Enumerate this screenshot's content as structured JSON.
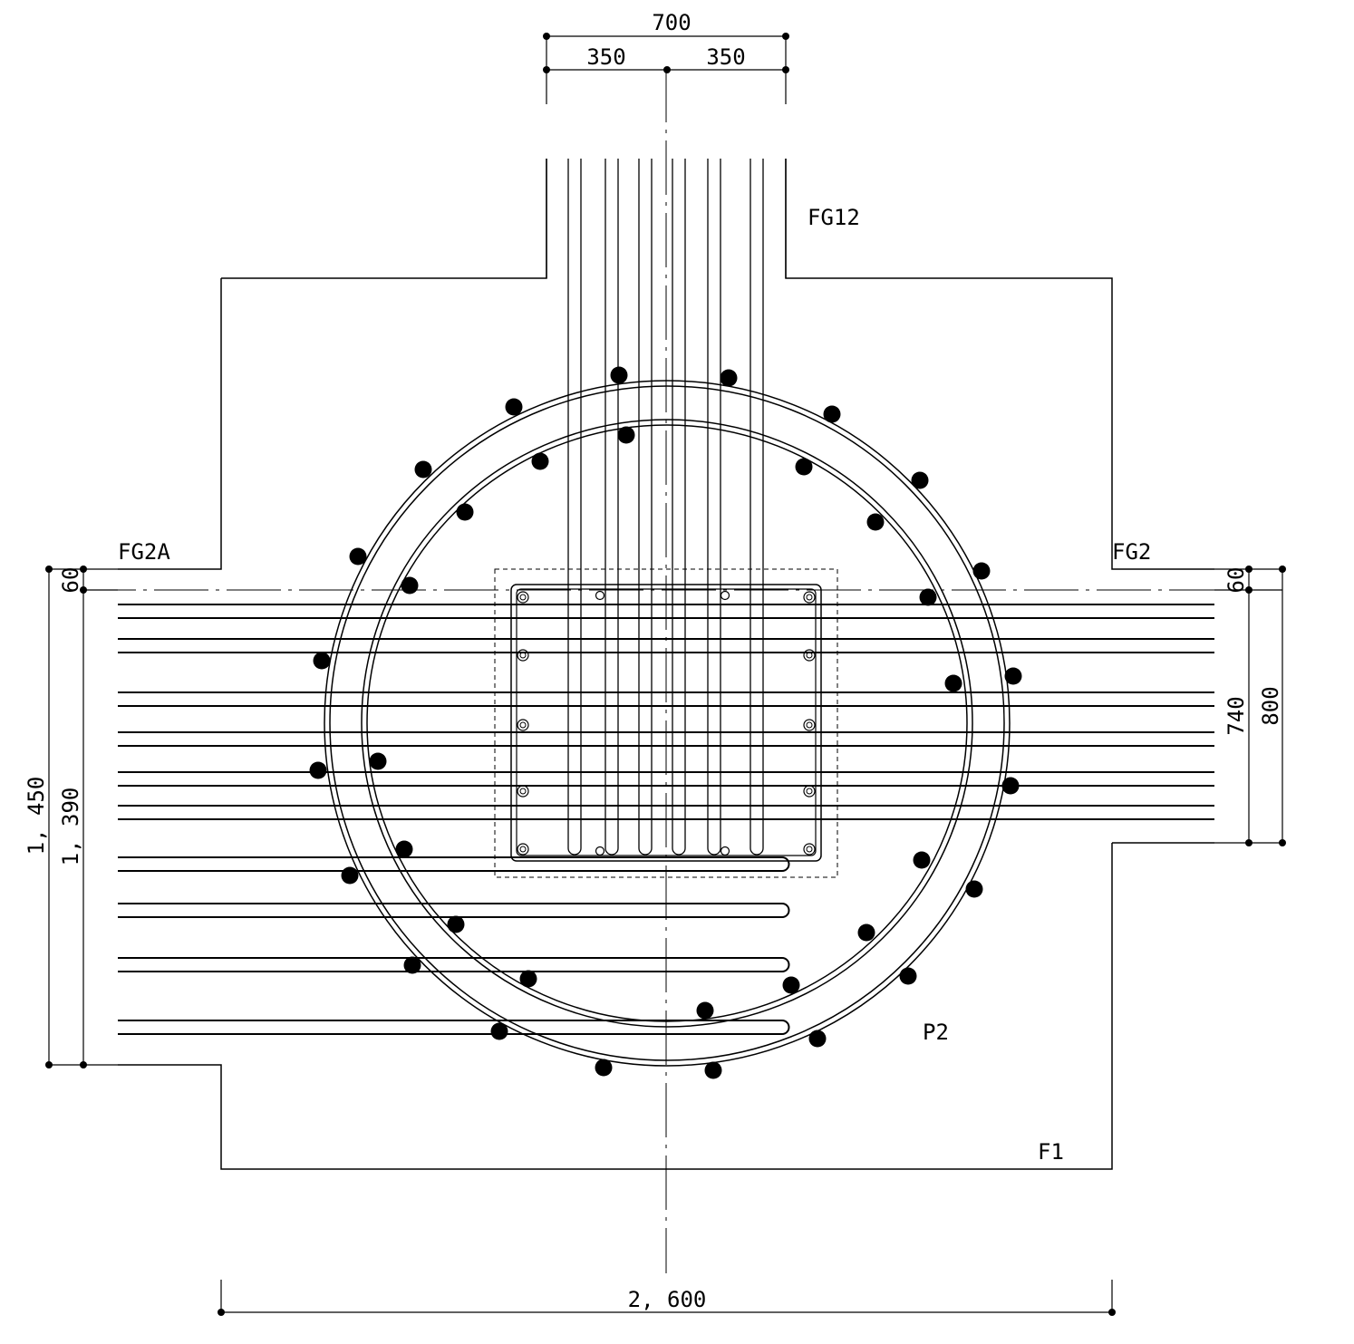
{
  "dimensions": {
    "top_total": "700",
    "top_left": "350",
    "top_right": "350",
    "bottom_total": "2, 600",
    "left_outer": "1, 450",
    "left_inner": "1, 390",
    "left_cover": "60",
    "right_cover": "60",
    "right_inner": "740",
    "right_outer": "800"
  },
  "labels": {
    "beam_top": "FG12",
    "beam_left": "FG2A",
    "beam_right": "FG2",
    "pile": "P2",
    "footing": "F1"
  },
  "colors": {
    "line": "#000000",
    "background": "#ffffff"
  }
}
